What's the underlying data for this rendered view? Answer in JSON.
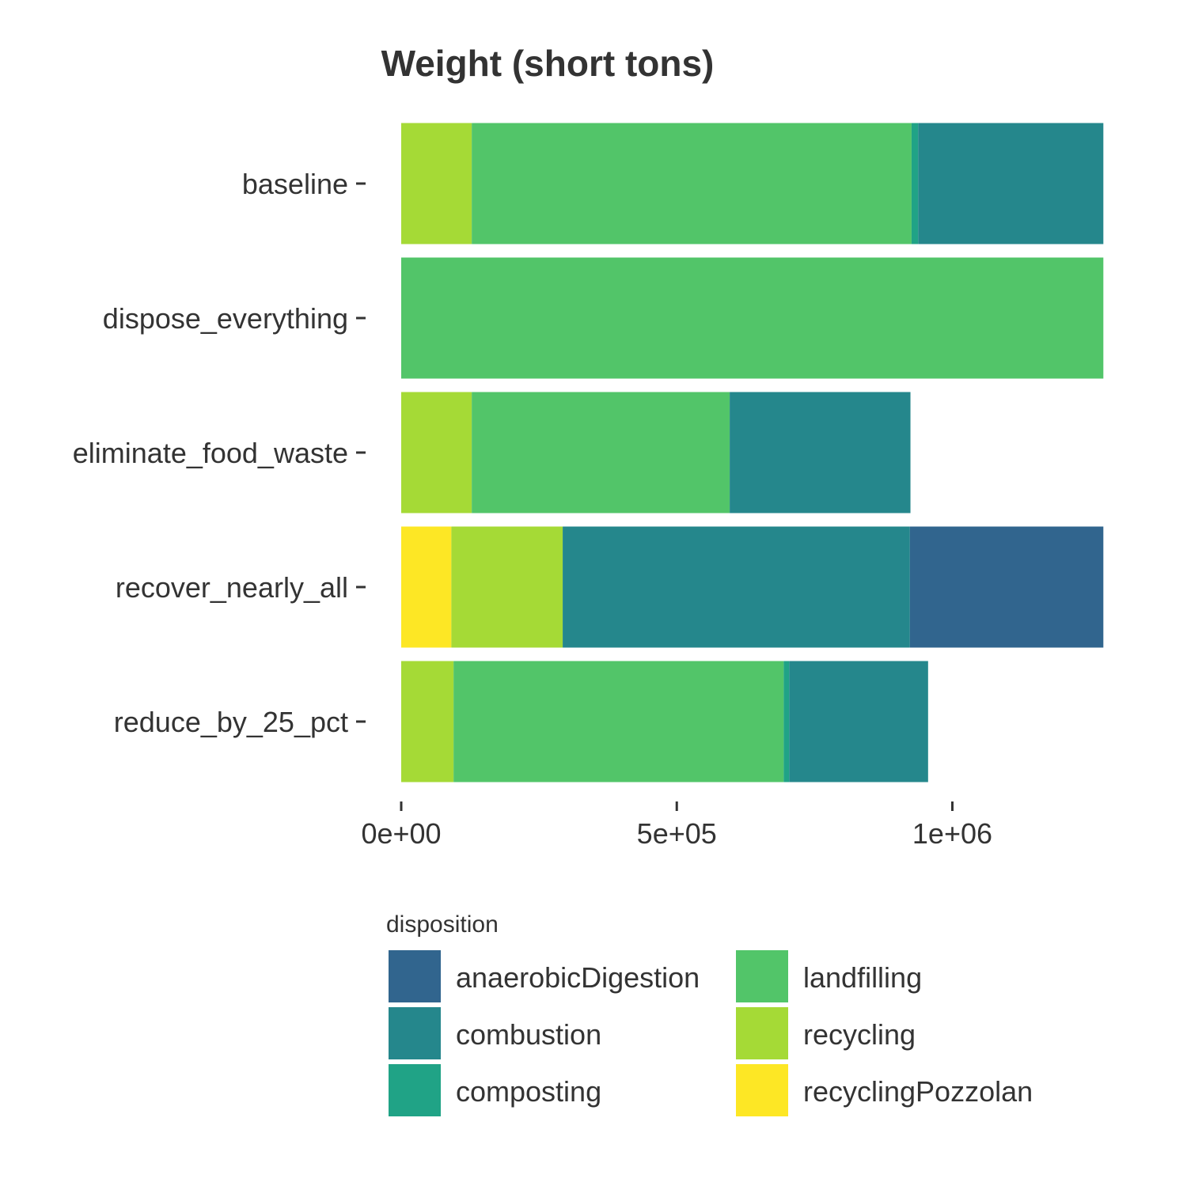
{
  "chart_data": {
    "type": "bar",
    "orientation": "horizontal",
    "stacked": true,
    "title": "Weight (short tons)",
    "xlabel": "",
    "ylabel": "",
    "xlim": [
      0,
      1275000
    ],
    "xticks": [
      {
        "value": 0,
        "label": "0e+00"
      },
      {
        "value": 500000,
        "label": "5e+05"
      },
      {
        "value": 1000000,
        "label": "1e+06"
      }
    ],
    "grid": false,
    "categories": [
      "baseline",
      "dispose_everything",
      "eliminate_food_waste",
      "recover_nearly_all",
      "reduce_by_25_pct"
    ],
    "stack_order": [
      "recyclingPozzolan",
      "recycling",
      "landfilling",
      "composting",
      "combustion",
      "anaerobicDigestion"
    ],
    "series": [
      {
        "name": "anaerobicDigestion",
        "color": "#31658e",
        "values": [
          0,
          0,
          0,
          351000,
          0
        ]
      },
      {
        "name": "combustion",
        "color": "#25878c",
        "values": [
          336000,
          0,
          328000,
          630000,
          252000
        ]
      },
      {
        "name": "composting",
        "color": "#20a386",
        "values": [
          12000,
          0,
          0,
          0,
          10000
        ]
      },
      {
        "name": "landfilling",
        "color": "#52c569",
        "values": [
          798000,
          1274000,
          468000,
          0,
          599000
        ]
      },
      {
        "name": "recycling",
        "color": "#a5da36",
        "values": [
          128000,
          0,
          128000,
          202000,
          95000
        ]
      },
      {
        "name": "recyclingPozzolan",
        "color": "#fde725",
        "values": [
          0,
          0,
          0,
          91000,
          0
        ]
      }
    ],
    "legend": {
      "title": "disposition",
      "position": "bottom",
      "columns": [
        [
          "anaerobicDigestion",
          "combustion",
          "composting"
        ],
        [
          "landfilling",
          "recycling",
          "recyclingPozzolan"
        ]
      ]
    }
  }
}
